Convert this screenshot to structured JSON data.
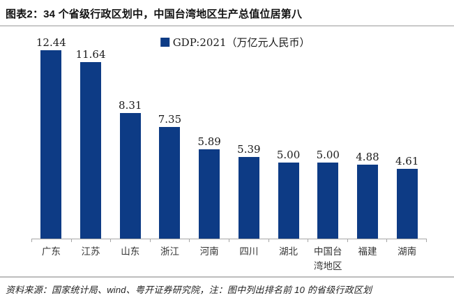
{
  "header": {
    "title": "图表2：34 个省级行政区划中，中国台湾地区生产总值位居第八"
  },
  "chart_data": {
    "type": "bar",
    "title": "图表2：34 个省级行政区划中，中国台湾地区生产总值位居第八",
    "legend": "GDP:2021（万亿元人民币）",
    "legend_position": "top-center",
    "categories": [
      "广东",
      "江苏",
      "山东",
      "浙江",
      "河南",
      "四川",
      "湖北",
      "中国台\n湾地区",
      "福建",
      "湖南"
    ],
    "values": [
      12.44,
      11.64,
      8.31,
      7.35,
      5.89,
      5.39,
      5.0,
      5.0,
      4.88,
      4.61
    ],
    "value_labels": [
      "12.44",
      "11.64",
      "8.31",
      "7.35",
      "5.89",
      "5.39",
      "5.00",
      "5.00",
      "4.88",
      "4.61"
    ],
    "xlabel": "",
    "ylabel": "",
    "ylim": [
      0,
      13
    ],
    "grid": false,
    "bar_color": "#0d3b85",
    "axis_color": "#a6a6a6"
  },
  "footer": {
    "note": "资料来源：国家统计局、wind、粤开证券研究院，注：图中列出排名前 10 的省级行政区划"
  }
}
